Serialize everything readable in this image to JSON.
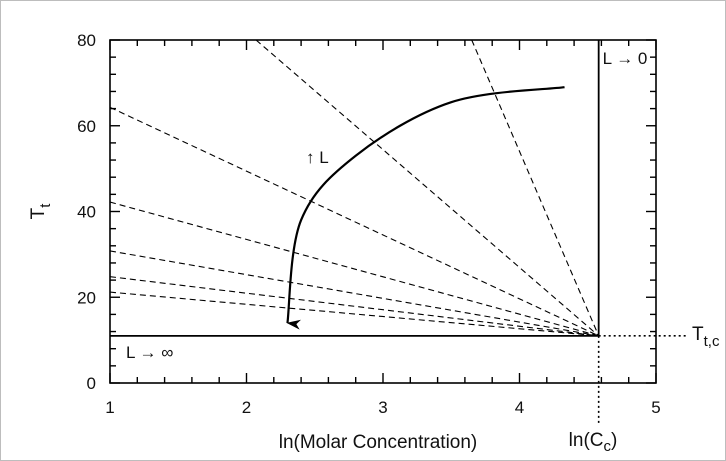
{
  "chart_data": {
    "type": "line",
    "title": "",
    "xlabel": "ln(Molar Concentration)",
    "ylabel": "T",
    "ylabel_subscript": "t",
    "xlim": [
      1,
      5
    ],
    "ylim": [
      0,
      80
    ],
    "xticks": [
      "1",
      "2",
      "3",
      "4",
      "5"
    ],
    "yticks": [
      "0",
      "20",
      "40",
      "60",
      "80"
    ],
    "grid": false,
    "critical_point": {
      "x": 4.58,
      "y": 11
    },
    "critical_x_label": "ln(C",
    "critical_x_label_subscript": "c",
    "critical_x_label_suffix": ")",
    "critical_y_label": "T",
    "critical_y_label_subscript": "t,c",
    "boundary_lines": {
      "horizontal": {
        "y": 11,
        "x_from": 1,
        "x_to": 4.58,
        "label": "L → ∞"
      },
      "vertical": {
        "x": 4.58,
        "y_from": 11,
        "y_to": 80,
        "label": "L → 0"
      }
    },
    "dashed_lines": [
      {
        "from": [
          1,
          21.2
        ],
        "to": [
          4.58,
          11
        ]
      },
      {
        "from": [
          1,
          24.8
        ],
        "to": [
          4.58,
          11
        ]
      },
      {
        "from": [
          1,
          30.8
        ],
        "to": [
          4.58,
          11
        ]
      },
      {
        "from": [
          1,
          42.2
        ],
        "to": [
          4.58,
          11
        ]
      },
      {
        "from": [
          1,
          64.3
        ],
        "to": [
          4.58,
          11
        ]
      },
      {
        "from": [
          2.07,
          80
        ],
        "to": [
          4.58,
          11
        ]
      },
      {
        "from": [
          3.65,
          80
        ],
        "to": [
          4.58,
          11
        ]
      }
    ],
    "arrow_curve": {
      "label": "↑ L",
      "points": [
        [
          4.33,
          69
        ],
        [
          3.5,
          65.5
        ],
        [
          2.8,
          53
        ],
        [
          2.4,
          38
        ],
        [
          2.3,
          14
        ]
      ]
    },
    "colors": {
      "line": "#000000",
      "frame": "#bdbdbd"
    }
  }
}
